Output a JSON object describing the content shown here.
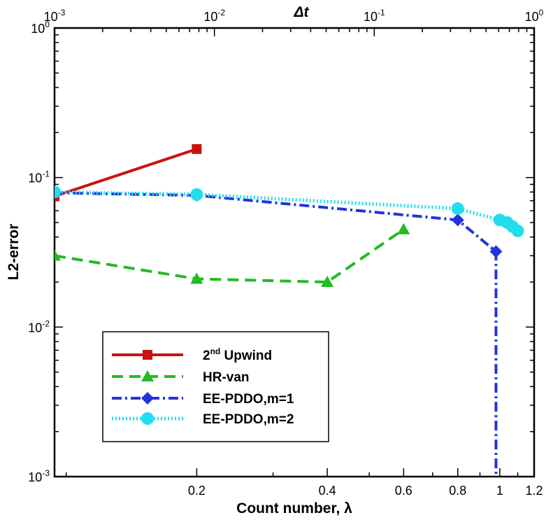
{
  "chart_data": {
    "type": "line",
    "title": "",
    "xlabel": "Count number, λ",
    "ylabel": "L2-error",
    "x2label": "Δt",
    "xscale": "log",
    "yscale": "log",
    "xlim": [
      0.094,
      1.2
    ],
    "ylim": [
      0.001,
      1
    ],
    "x2lim": [
      0.001,
      1
    ],
    "x_ticks": [
      {
        "value": 0.2,
        "label": "0.2"
      },
      {
        "value": 0.4,
        "label": "0.4"
      },
      {
        "value": 0.6,
        "label": "0.6"
      },
      {
        "value": 0.8,
        "label": "0.8"
      },
      {
        "value": 1.0,
        "label": "1"
      },
      {
        "value": 1.2,
        "label": "1.2"
      }
    ],
    "x2_ticks": [
      {
        "value": 0.001,
        "base": "10",
        "exp": "-3"
      },
      {
        "value": 0.01,
        "base": "10",
        "exp": "-2"
      },
      {
        "value": 0.1,
        "base": "10",
        "exp": "-1"
      },
      {
        "value": 1,
        "base": "10",
        "exp": "0"
      }
    ],
    "y_ticks": [
      {
        "value": 0.001,
        "base": "10",
        "exp": "-3"
      },
      {
        "value": 0.01,
        "base": "10",
        "exp": "-2"
      },
      {
        "value": 0.1,
        "base": "10",
        "exp": "-1"
      },
      {
        "value": 1,
        "base": "10",
        "exp": "0"
      }
    ],
    "grid": false,
    "legend_position": "bottom-left",
    "series": [
      {
        "key": "upwind",
        "name": "Upwind",
        "name_prefix": "2",
        "name_sup": "nd",
        "color": "#cc1111",
        "marker": "square",
        "line": "solid",
        "x": [
          0.094,
          0.2
        ],
        "y": [
          0.075,
          0.155
        ]
      },
      {
        "key": "hrvan",
        "name": "HR-van",
        "color": "#22bb22",
        "marker": "triangle",
        "line": "dashed",
        "x": [
          0.094,
          0.2,
          0.4,
          0.6
        ],
        "y": [
          0.03,
          0.021,
          0.02,
          0.045
        ]
      },
      {
        "key": "eem1",
        "name": "EE-PDDO,m=1",
        "color": "#2233dd",
        "marker": "diamond",
        "line": "dashdot",
        "x": [
          0.094,
          0.2,
          0.8,
          0.98,
          0.98
        ],
        "y": [
          0.079,
          0.076,
          0.052,
          0.032,
          0.00095
        ]
      },
      {
        "key": "eem2",
        "name": "EE-PDDO,m=2",
        "color": "#22ddee",
        "marker": "circle",
        "line": "dotted",
        "x": [
          0.094,
          0.2,
          0.8,
          1.0,
          1.04,
          1.07,
          1.1
        ],
        "y": [
          0.08,
          0.077,
          0.062,
          0.052,
          0.05,
          0.047,
          0.044
        ]
      }
    ]
  }
}
